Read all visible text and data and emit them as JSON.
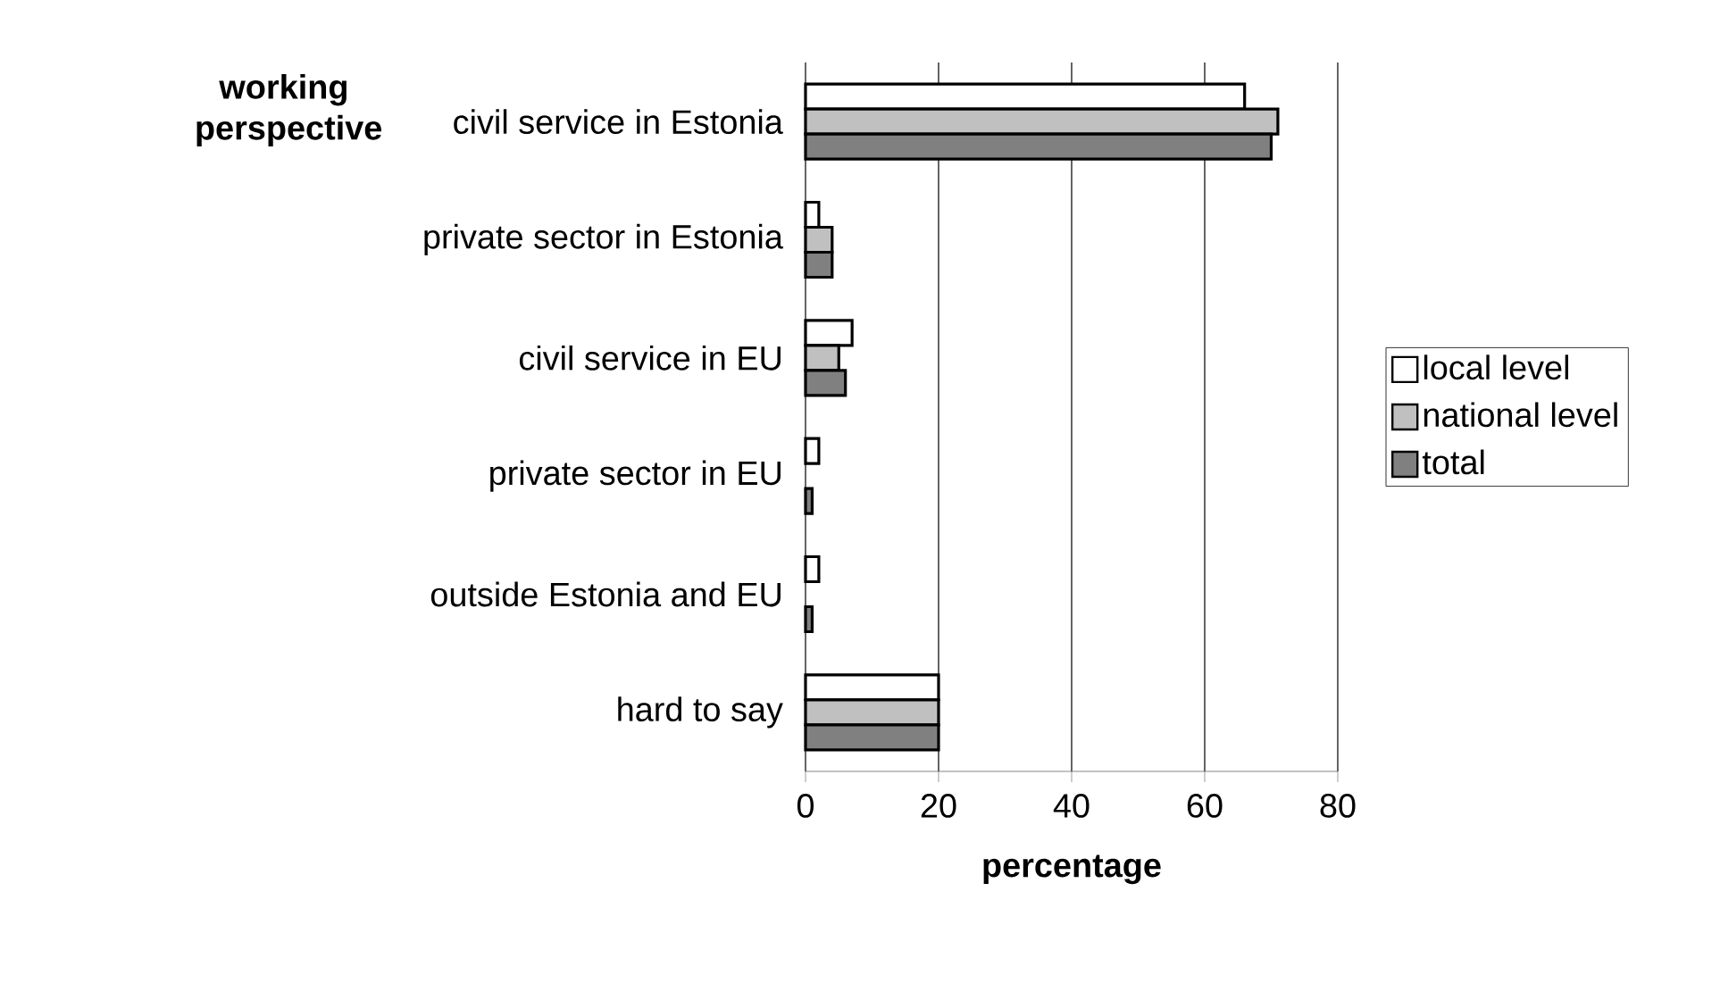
{
  "chart_data": {
    "type": "bar",
    "orientation": "horizontal",
    "xlabel": "percentage",
    "ylabel": "working perspective",
    "categories": [
      "civil service in Estonia",
      "private sector in Estonia",
      "civil service in EU",
      "private sector in EU",
      "outside Estonia and EU",
      "hard to say"
    ],
    "series": [
      {
        "name": "local level",
        "color": "#ffffff",
        "values": [
          66,
          2,
          7,
          2,
          2,
          20
        ]
      },
      {
        "name": "national level",
        "color": "#c0c0c0",
        "values": [
          71,
          4,
          5,
          null,
          null,
          20
        ]
      },
      {
        "name": "total",
        "color": "#808080",
        "values": [
          70,
          4,
          6,
          1,
          1,
          20
        ]
      }
    ],
    "xlim": [
      0,
      80
    ],
    "xticks": [
      0,
      20,
      40,
      60,
      80
    ],
    "grid": "x",
    "legend": "right"
  }
}
